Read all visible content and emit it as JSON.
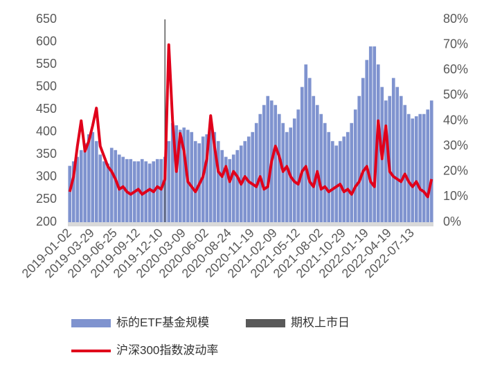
{
  "chart_data": {
    "type": "bar",
    "categories": [
      "2019-01-02",
      null,
      null,
      null,
      null,
      null,
      "2019-03-29",
      null,
      null,
      null,
      null,
      null,
      "2019-06-25",
      null,
      null,
      null,
      null,
      null,
      "2019-09-12",
      null,
      null,
      null,
      null,
      null,
      "2019-12-10",
      null,
      null,
      null,
      null,
      null,
      "2020-03-09",
      null,
      null,
      null,
      null,
      null,
      "2020-06-02",
      null,
      null,
      null,
      null,
      null,
      "2020-08-24",
      null,
      null,
      null,
      null,
      null,
      "2020-11-19",
      null,
      null,
      null,
      null,
      null,
      "2021-02-09",
      null,
      null,
      null,
      null,
      null,
      "2021-05-12",
      null,
      null,
      null,
      null,
      null,
      "2021-08-02",
      null,
      null,
      null,
      null,
      null,
      "2021-10-29",
      null,
      null,
      null,
      null,
      null,
      "2022-01-19",
      null,
      null,
      null,
      null,
      null,
      "2022-04-19",
      null,
      null,
      null,
      null,
      null,
      "2022-07-13",
      null,
      null,
      null,
      null,
      null
    ],
    "series": [
      {
        "name": "标的ETF基金规模",
        "color": "#7f93cf",
        "values": [
          325,
          335,
          345,
          360,
          375,
          395,
          400,
          380,
          350,
          335,
          330,
          365,
          360,
          350,
          345,
          340,
          340,
          335,
          335,
          340,
          335,
          330,
          335,
          340,
          340,
          345,
          380,
          420,
          415,
          405,
          410,
          405,
          400,
          380,
          375,
          390,
          395,
          410,
          400,
          380,
          360,
          345,
          340,
          350,
          360,
          370,
          380,
          390,
          400,
          420,
          440,
          460,
          480,
          470,
          460,
          440,
          420,
          400,
          410,
          430,
          450,
          500,
          550,
          520,
          480,
          460,
          440,
          420,
          400,
          380,
          370,
          380,
          390,
          400,
          420,
          450,
          480,
          520,
          560,
          590,
          590,
          550,
          500,
          470,
          480,
          520,
          500,
          480,
          460,
          440,
          430,
          435,
          440,
          440,
          450,
          470
        ]
      },
      {
        "name": "期权上市日",
        "color": "#595959",
        "values": [
          null,
          null,
          null,
          null,
          null,
          null,
          null,
          null,
          null,
          null,
          null,
          null,
          null,
          null,
          null,
          null,
          null,
          null,
          null,
          null,
          null,
          null,
          null,
          null,
          null,
          650,
          null,
          null,
          null,
          null,
          null,
          null,
          null,
          null,
          null,
          null,
          null,
          null,
          null,
          null,
          null,
          null,
          null,
          null,
          null,
          null,
          null,
          null,
          null,
          null,
          null,
          null,
          null,
          null,
          null,
          null,
          null,
          null,
          null,
          null,
          null,
          null,
          null,
          null,
          null,
          null,
          null,
          null,
          null,
          null,
          null,
          null,
          null,
          null,
          null,
          null,
          null,
          null,
          null,
          null,
          null,
          null,
          null,
          null,
          null,
          null,
          null,
          null,
          null,
          null,
          null,
          null,
          null,
          null,
          null,
          null
        ]
      },
      {
        "name": "沪深300指数波动率",
        "color": "#e0001b",
        "type": "line",
        "axis": "y2",
        "values": [
          12,
          18,
          30,
          40,
          28,
          32,
          38,
          45,
          30,
          26,
          22,
          20,
          17,
          13,
          14,
          12,
          11,
          12,
          13,
          11,
          12,
          13,
          12,
          14,
          13,
          17,
          70,
          40,
          20,
          35,
          28,
          16,
          14,
          12,
          15,
          18,
          25,
          42,
          30,
          20,
          18,
          22,
          16,
          20,
          18,
          15,
          18,
          16,
          15,
          14,
          18,
          13,
          14,
          24,
          30,
          26,
          20,
          22,
          18,
          16,
          15,
          20,
          22,
          16,
          14,
          20,
          13,
          14,
          12,
          13,
          14,
          15,
          12,
          13,
          11,
          14,
          16,
          20,
          22,
          16,
          14,
          40,
          25,
          38,
          20,
          18,
          17,
          16,
          19,
          16,
          14,
          16,
          13,
          12,
          10,
          17
        ]
      }
    ],
    "ylim": [
      200,
      650
    ],
    "yticks": [
      200,
      250,
      300,
      350,
      400,
      450,
      500,
      550,
      600,
      650
    ],
    "y2lim": [
      0,
      80
    ],
    "y2ticks": [
      {
        "value": 0,
        "label": "0%"
      },
      {
        "value": 10,
        "label": "10%"
      },
      {
        "value": 20,
        "label": "20%"
      },
      {
        "value": 30,
        "label": "30%"
      },
      {
        "value": 40,
        "label": "40%"
      },
      {
        "value": 50,
        "label": "50%"
      },
      {
        "value": 60,
        "label": "60%"
      },
      {
        "value": 70,
        "label": "70%"
      },
      {
        "value": 80,
        "label": "80%"
      }
    ]
  }
}
